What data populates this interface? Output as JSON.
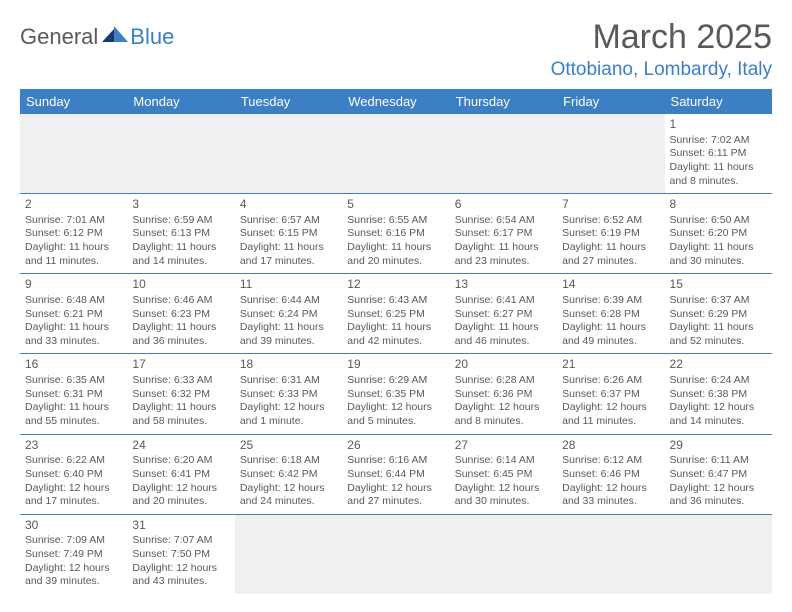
{
  "logo": {
    "word1": "General",
    "word2": "Blue"
  },
  "title": "March 2025",
  "location": "Ottobiano, Lombardy, Italy",
  "colors": {
    "accent": "#3b7fc4",
    "text": "#595959",
    "bg": "#ffffff",
    "shade": "#f0f0f0"
  },
  "weekdays": [
    "Sunday",
    "Monday",
    "Tuesday",
    "Wednesday",
    "Thursday",
    "Friday",
    "Saturday"
  ],
  "weeks": [
    [
      {
        "empty": true
      },
      {
        "empty": true
      },
      {
        "empty": true
      },
      {
        "empty": true
      },
      {
        "empty": true
      },
      {
        "empty": true
      },
      {
        "n": "1",
        "sr": "Sunrise: 7:02 AM",
        "ss": "Sunset: 6:11 PM",
        "d1": "Daylight: 11 hours",
        "d2": "and 8 minutes."
      }
    ],
    [
      {
        "n": "2",
        "sr": "Sunrise: 7:01 AM",
        "ss": "Sunset: 6:12 PM",
        "d1": "Daylight: 11 hours",
        "d2": "and 11 minutes."
      },
      {
        "n": "3",
        "sr": "Sunrise: 6:59 AM",
        "ss": "Sunset: 6:13 PM",
        "d1": "Daylight: 11 hours",
        "d2": "and 14 minutes."
      },
      {
        "n": "4",
        "sr": "Sunrise: 6:57 AM",
        "ss": "Sunset: 6:15 PM",
        "d1": "Daylight: 11 hours",
        "d2": "and 17 minutes."
      },
      {
        "n": "5",
        "sr": "Sunrise: 6:55 AM",
        "ss": "Sunset: 6:16 PM",
        "d1": "Daylight: 11 hours",
        "d2": "and 20 minutes."
      },
      {
        "n": "6",
        "sr": "Sunrise: 6:54 AM",
        "ss": "Sunset: 6:17 PM",
        "d1": "Daylight: 11 hours",
        "d2": "and 23 minutes."
      },
      {
        "n": "7",
        "sr": "Sunrise: 6:52 AM",
        "ss": "Sunset: 6:19 PM",
        "d1": "Daylight: 11 hours",
        "d2": "and 27 minutes."
      },
      {
        "n": "8",
        "sr": "Sunrise: 6:50 AM",
        "ss": "Sunset: 6:20 PM",
        "d1": "Daylight: 11 hours",
        "d2": "and 30 minutes."
      }
    ],
    [
      {
        "n": "9",
        "sr": "Sunrise: 6:48 AM",
        "ss": "Sunset: 6:21 PM",
        "d1": "Daylight: 11 hours",
        "d2": "and 33 minutes."
      },
      {
        "n": "10",
        "sr": "Sunrise: 6:46 AM",
        "ss": "Sunset: 6:23 PM",
        "d1": "Daylight: 11 hours",
        "d2": "and 36 minutes."
      },
      {
        "n": "11",
        "sr": "Sunrise: 6:44 AM",
        "ss": "Sunset: 6:24 PM",
        "d1": "Daylight: 11 hours",
        "d2": "and 39 minutes."
      },
      {
        "n": "12",
        "sr": "Sunrise: 6:43 AM",
        "ss": "Sunset: 6:25 PM",
        "d1": "Daylight: 11 hours",
        "d2": "and 42 minutes."
      },
      {
        "n": "13",
        "sr": "Sunrise: 6:41 AM",
        "ss": "Sunset: 6:27 PM",
        "d1": "Daylight: 11 hours",
        "d2": "and 46 minutes."
      },
      {
        "n": "14",
        "sr": "Sunrise: 6:39 AM",
        "ss": "Sunset: 6:28 PM",
        "d1": "Daylight: 11 hours",
        "d2": "and 49 minutes."
      },
      {
        "n": "15",
        "sr": "Sunrise: 6:37 AM",
        "ss": "Sunset: 6:29 PM",
        "d1": "Daylight: 11 hours",
        "d2": "and 52 minutes."
      }
    ],
    [
      {
        "n": "16",
        "sr": "Sunrise: 6:35 AM",
        "ss": "Sunset: 6:31 PM",
        "d1": "Daylight: 11 hours",
        "d2": "and 55 minutes."
      },
      {
        "n": "17",
        "sr": "Sunrise: 6:33 AM",
        "ss": "Sunset: 6:32 PM",
        "d1": "Daylight: 11 hours",
        "d2": "and 58 minutes."
      },
      {
        "n": "18",
        "sr": "Sunrise: 6:31 AM",
        "ss": "Sunset: 6:33 PM",
        "d1": "Daylight: 12 hours",
        "d2": "and 1 minute."
      },
      {
        "n": "19",
        "sr": "Sunrise: 6:29 AM",
        "ss": "Sunset: 6:35 PM",
        "d1": "Daylight: 12 hours",
        "d2": "and 5 minutes."
      },
      {
        "n": "20",
        "sr": "Sunrise: 6:28 AM",
        "ss": "Sunset: 6:36 PM",
        "d1": "Daylight: 12 hours",
        "d2": "and 8 minutes."
      },
      {
        "n": "21",
        "sr": "Sunrise: 6:26 AM",
        "ss": "Sunset: 6:37 PM",
        "d1": "Daylight: 12 hours",
        "d2": "and 11 minutes."
      },
      {
        "n": "22",
        "sr": "Sunrise: 6:24 AM",
        "ss": "Sunset: 6:38 PM",
        "d1": "Daylight: 12 hours",
        "d2": "and 14 minutes."
      }
    ],
    [
      {
        "n": "23",
        "sr": "Sunrise: 6:22 AM",
        "ss": "Sunset: 6:40 PM",
        "d1": "Daylight: 12 hours",
        "d2": "and 17 minutes."
      },
      {
        "n": "24",
        "sr": "Sunrise: 6:20 AM",
        "ss": "Sunset: 6:41 PM",
        "d1": "Daylight: 12 hours",
        "d2": "and 20 minutes."
      },
      {
        "n": "25",
        "sr": "Sunrise: 6:18 AM",
        "ss": "Sunset: 6:42 PM",
        "d1": "Daylight: 12 hours",
        "d2": "and 24 minutes."
      },
      {
        "n": "26",
        "sr": "Sunrise: 6:16 AM",
        "ss": "Sunset: 6:44 PM",
        "d1": "Daylight: 12 hours",
        "d2": "and 27 minutes."
      },
      {
        "n": "27",
        "sr": "Sunrise: 6:14 AM",
        "ss": "Sunset: 6:45 PM",
        "d1": "Daylight: 12 hours",
        "d2": "and 30 minutes."
      },
      {
        "n": "28",
        "sr": "Sunrise: 6:12 AM",
        "ss": "Sunset: 6:46 PM",
        "d1": "Daylight: 12 hours",
        "d2": "and 33 minutes."
      },
      {
        "n": "29",
        "sr": "Sunrise: 6:11 AM",
        "ss": "Sunset: 6:47 PM",
        "d1": "Daylight: 12 hours",
        "d2": "and 36 minutes."
      }
    ],
    [
      {
        "n": "30",
        "sr": "Sunrise: 7:09 AM",
        "ss": "Sunset: 7:49 PM",
        "d1": "Daylight: 12 hours",
        "d2": "and 39 minutes."
      },
      {
        "n": "31",
        "sr": "Sunrise: 7:07 AM",
        "ss": "Sunset: 7:50 PM",
        "d1": "Daylight: 12 hours",
        "d2": "and 43 minutes."
      },
      {
        "empty": true
      },
      {
        "empty": true
      },
      {
        "empty": true
      },
      {
        "empty": true
      },
      {
        "empty": true
      }
    ]
  ]
}
